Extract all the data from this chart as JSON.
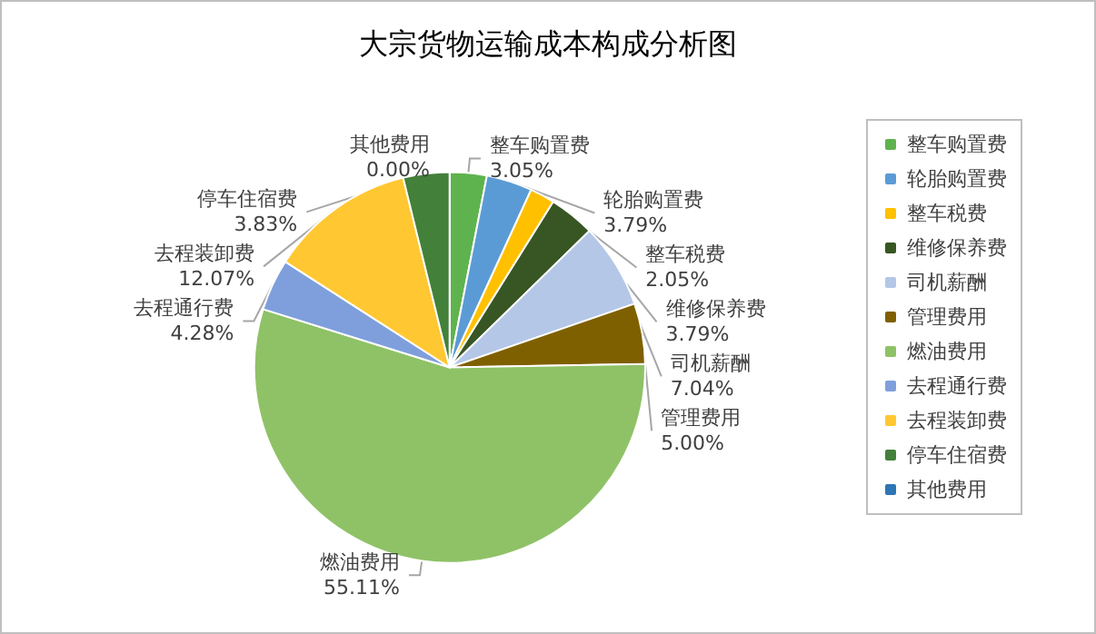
{
  "chart_data": {
    "type": "pie",
    "title": "大宗货物运输成本构成分析图",
    "categories": [
      "整车购置费",
      "轮胎购置费",
      "整车税费",
      "维修保养费",
      "司机薪酬",
      "管理费用",
      "燃油费用",
      "去程通行费",
      "去程装卸费",
      "停车住宿费",
      "其他费用"
    ],
    "values": [
      3.05,
      3.79,
      2.05,
      3.79,
      7.04,
      5.0,
      55.11,
      4.28,
      12.07,
      3.83,
      0.0
    ],
    "value_labels": [
      "3.05%",
      "3.79%",
      "2.05%",
      "3.79%",
      "7.04%",
      "5.00%",
      "55.11%",
      "4.28%",
      "12.07%",
      "3.83%",
      "0.00%"
    ],
    "colors": [
      "#5fb34e",
      "#5b9bd5",
      "#ffc000",
      "#375623",
      "#b4c7e7",
      "#7f6000",
      "#8fc267",
      "#7f9fdc",
      "#ffc832",
      "#43803a",
      "#2e75b6"
    ],
    "legend": "right"
  }
}
